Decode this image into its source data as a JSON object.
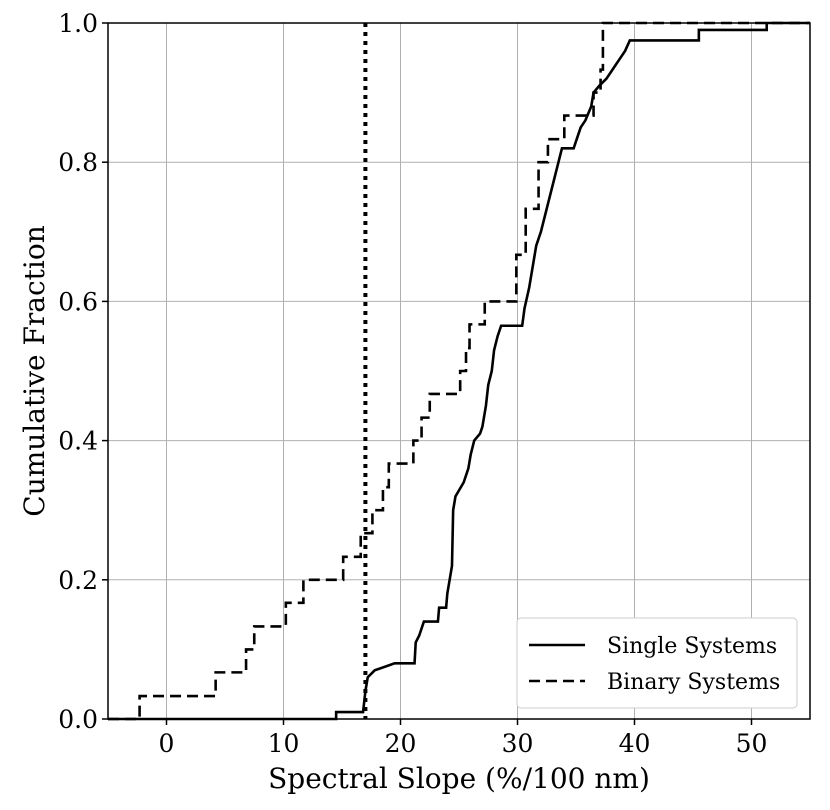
{
  "chart_data": {
    "type": "line",
    "xlabel": "Spectral Slope (%/100 nm)",
    "ylabel": "Cumulative Fraction",
    "xlim": [
      -5,
      55
    ],
    "ylim": [
      0,
      1.0
    ],
    "xticks": [
      0,
      10,
      20,
      30,
      40,
      50
    ],
    "yticks": [
      0.0,
      0.2,
      0.4,
      0.6,
      0.8,
      1.0
    ],
    "xtick_labels": [
      "0",
      "10",
      "20",
      "30",
      "40",
      "50"
    ],
    "ytick_labels": [
      "0.0",
      "0.2",
      "0.4",
      "0.6",
      "0.8",
      "1.0"
    ],
    "grid": true,
    "legend_position": "bottom-right",
    "reference_line": {
      "x": 17,
      "style": "dotted"
    },
    "series": [
      {
        "name": "Single Systems",
        "style": "solid",
        "color": "#000000",
        "steps": [
          [
            -5,
            0.0
          ],
          [
            14.5,
            0.0
          ],
          [
            14.5,
            0.01
          ],
          [
            16.8,
            0.01
          ],
          [
            17.0,
            0.04
          ],
          [
            17.2,
            0.06
          ],
          [
            17.8,
            0.07
          ],
          [
            19.5,
            0.08
          ],
          [
            21.2,
            0.08
          ],
          [
            21.3,
            0.11
          ],
          [
            21.6,
            0.12
          ],
          [
            22.0,
            0.14
          ],
          [
            23.2,
            0.14
          ],
          [
            23.3,
            0.16
          ],
          [
            23.9,
            0.16
          ],
          [
            24.0,
            0.18
          ],
          [
            24.2,
            0.2
          ],
          [
            24.4,
            0.22
          ],
          [
            24.5,
            0.3
          ],
          [
            24.7,
            0.32
          ],
          [
            25.4,
            0.34
          ],
          [
            25.8,
            0.36
          ],
          [
            26.0,
            0.38
          ],
          [
            26.3,
            0.4
          ],
          [
            26.8,
            0.41
          ],
          [
            27.0,
            0.42
          ],
          [
            27.3,
            0.45
          ],
          [
            27.5,
            0.48
          ],
          [
            27.8,
            0.5
          ],
          [
            28.0,
            0.53
          ],
          [
            28.3,
            0.55
          ],
          [
            28.6,
            0.565
          ],
          [
            30.4,
            0.565
          ],
          [
            30.6,
            0.59
          ],
          [
            31.0,
            0.62
          ],
          [
            31.3,
            0.65
          ],
          [
            31.6,
            0.68
          ],
          [
            32.0,
            0.7
          ],
          [
            32.3,
            0.72
          ],
          [
            32.6,
            0.74
          ],
          [
            32.9,
            0.76
          ],
          [
            33.2,
            0.78
          ],
          [
            33.5,
            0.8
          ],
          [
            33.8,
            0.82
          ],
          [
            34.8,
            0.82
          ],
          [
            35.0,
            0.83
          ],
          [
            35.4,
            0.85
          ],
          [
            35.8,
            0.86
          ],
          [
            36.3,
            0.88
          ],
          [
            36.5,
            0.9
          ],
          [
            37.0,
            0.91
          ],
          [
            37.6,
            0.92
          ],
          [
            38.0,
            0.93
          ],
          [
            38.4,
            0.94
          ],
          [
            38.8,
            0.95
          ],
          [
            39.2,
            0.96
          ],
          [
            39.6,
            0.975
          ],
          [
            45.5,
            0.975
          ],
          [
            45.5,
            0.99
          ],
          [
            51.3,
            0.99
          ],
          [
            51.3,
            1.0
          ],
          [
            55,
            1.0
          ]
        ]
      },
      {
        "name": "Binary Systems",
        "style": "dashed",
        "color": "#000000",
        "steps": [
          [
            -5,
            0.0
          ],
          [
            -2.3,
            0.0
          ],
          [
            -2.3,
            0.033
          ],
          [
            4.2,
            0.033
          ],
          [
            4.2,
            0.067
          ],
          [
            6.8,
            0.067
          ],
          [
            6.8,
            0.1
          ],
          [
            7.5,
            0.1
          ],
          [
            7.5,
            0.133
          ],
          [
            10.2,
            0.133
          ],
          [
            10.2,
            0.167
          ],
          [
            11.7,
            0.167
          ],
          [
            11.7,
            0.2
          ],
          [
            15.1,
            0.2
          ],
          [
            15.1,
            0.233
          ],
          [
            16.6,
            0.233
          ],
          [
            16.6,
            0.267
          ],
          [
            17.6,
            0.267
          ],
          [
            17.6,
            0.3
          ],
          [
            18.5,
            0.3
          ],
          [
            18.5,
            0.333
          ],
          [
            19.0,
            0.333
          ],
          [
            19.0,
            0.367
          ],
          [
            21.1,
            0.367
          ],
          [
            21.1,
            0.4
          ],
          [
            21.8,
            0.4
          ],
          [
            21.8,
            0.433
          ],
          [
            22.5,
            0.433
          ],
          [
            22.5,
            0.467
          ],
          [
            25.1,
            0.467
          ],
          [
            25.1,
            0.5
          ],
          [
            25.6,
            0.5
          ],
          [
            25.6,
            0.533
          ],
          [
            25.9,
            0.533
          ],
          [
            25.9,
            0.567
          ],
          [
            27.2,
            0.567
          ],
          [
            27.2,
            0.6
          ],
          [
            29.9,
            0.6
          ],
          [
            29.9,
            0.667
          ],
          [
            30.7,
            0.667
          ],
          [
            30.7,
            0.733
          ],
          [
            31.8,
            0.733
          ],
          [
            31.8,
            0.8
          ],
          [
            32.6,
            0.8
          ],
          [
            32.6,
            0.833
          ],
          [
            34.0,
            0.833
          ],
          [
            34.0,
            0.867
          ],
          [
            36.5,
            0.867
          ],
          [
            36.5,
            0.9
          ],
          [
            37.1,
            0.9
          ],
          [
            37.1,
            0.933
          ],
          [
            37.3,
            0.933
          ],
          [
            37.3,
            1.0
          ],
          [
            55,
            1.0
          ]
        ]
      }
    ]
  }
}
